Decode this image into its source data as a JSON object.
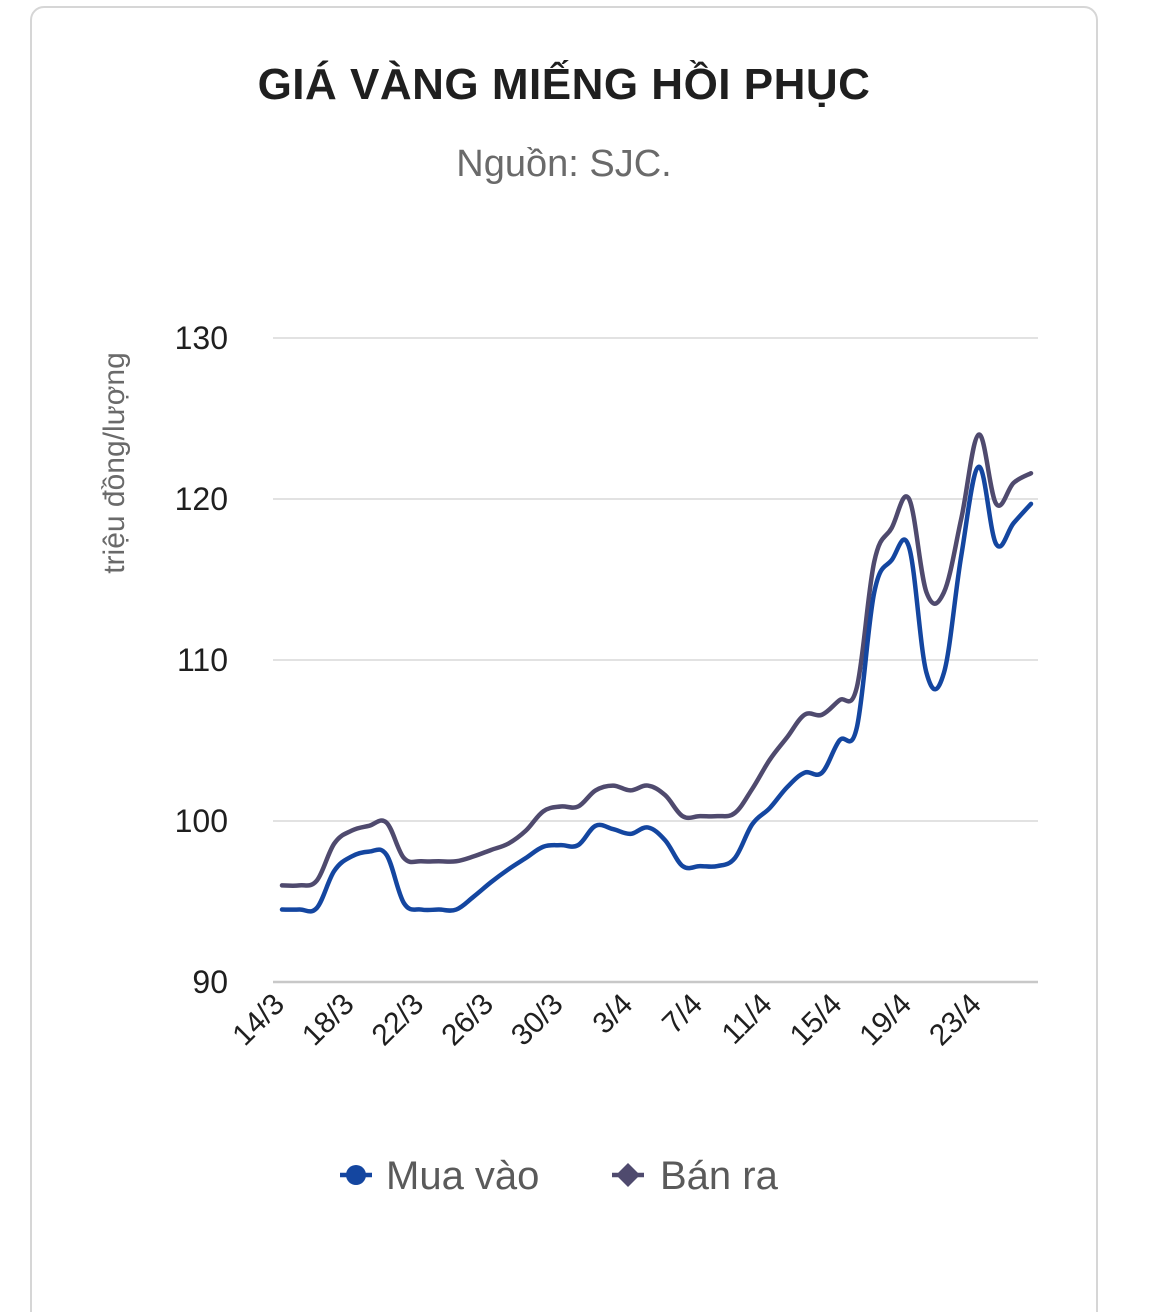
{
  "chart_data": {
    "type": "line",
    "title": "GIÁ VÀNG MIẾNG HỒI PHỤC",
    "subtitle": "Nguồn: SJC.",
    "ylabel": "triệu đồng/lượng",
    "ylim": [
      90,
      130
    ],
    "yticks": [
      90,
      100,
      110,
      120,
      130
    ],
    "grid": true,
    "legend_position": "bottom",
    "x_tick_labels": [
      "14/3",
      "18/3",
      "22/3",
      "26/3",
      "30/3",
      "3/4",
      "7/4",
      "11/4",
      "15/4",
      "19/4",
      "23/4"
    ],
    "x_tick_indices": [
      0,
      4,
      8,
      12,
      16,
      20,
      24,
      28,
      32,
      36,
      40
    ],
    "x": [
      "14/3",
      "15/3",
      "16/3",
      "17/3",
      "18/3",
      "19/3",
      "20/3",
      "21/3",
      "22/3",
      "23/3",
      "24/3",
      "25/3",
      "26/3",
      "27/3",
      "28/3",
      "29/3",
      "30/3",
      "31/3",
      "1/4",
      "2/4",
      "3/4",
      "4/4",
      "5/4",
      "6/4",
      "7/4",
      "8/4",
      "9/4",
      "10/4",
      "11/4",
      "12/4",
      "13/4",
      "14/4",
      "15/4",
      "16/4",
      "17/4",
      "18/4",
      "19/4",
      "20/4",
      "21/4",
      "22/4",
      "23/4",
      "24/4",
      "25/4",
      "26/4"
    ],
    "series": [
      {
        "name": "Mua vào",
        "color": "#1446a0",
        "marker": "circle",
        "values": [
          94.5,
          94.5,
          94.6,
          96.9,
          97.8,
          98.1,
          97.9,
          94.9,
          94.5,
          94.5,
          94.5,
          95.3,
          96.2,
          97.0,
          97.7,
          98.4,
          98.5,
          98.5,
          99.7,
          99.5,
          99.2,
          99.6,
          98.8,
          97.2,
          97.2,
          97.2,
          97.7,
          99.8,
          100.8,
          102.1,
          103.0,
          103.0,
          105.0,
          105.8,
          114.2,
          116.2,
          117.0,
          109.2,
          109.2,
          116.5,
          122.0,
          117.2,
          118.5,
          119.7
        ]
      },
      {
        "name": "Bán ra",
        "color": "#4f4a6e",
        "marker": "diamond",
        "values": [
          96.0,
          96.0,
          96.3,
          98.6,
          99.4,
          99.7,
          99.9,
          97.7,
          97.5,
          97.5,
          97.5,
          97.8,
          98.2,
          98.6,
          99.4,
          100.6,
          100.9,
          100.9,
          101.9,
          102.2,
          101.9,
          102.2,
          101.6,
          100.3,
          100.3,
          100.3,
          100.5,
          102.0,
          103.8,
          105.2,
          106.6,
          106.6,
          107.5,
          108.3,
          116.1,
          118.2,
          120.0,
          114.2,
          114.2,
          118.8,
          124.0,
          119.7,
          121.0,
          121.6
        ]
      }
    ]
  }
}
